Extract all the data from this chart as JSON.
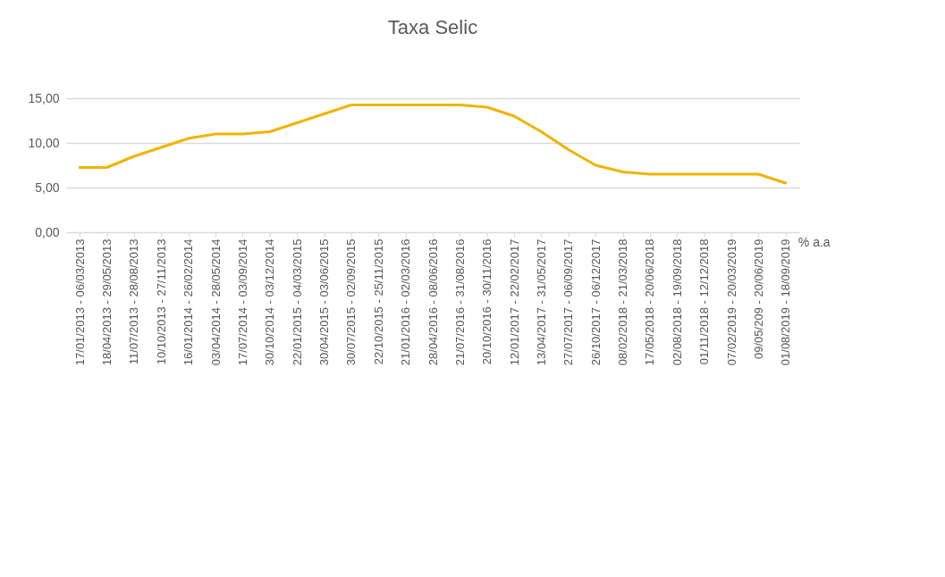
{
  "chart_data": {
    "type": "line",
    "title": "Taxa Selic",
    "categories": [
      "17/01/2013 - 06/03/2013",
      "18/04/2013 - 29/05/2013",
      "11/07/2013 - 28/08/2013",
      "10/10/2013 - 27/11/2013",
      "16/01/2014 - 26/02/2014",
      "03/04/2014 - 28/05/2014",
      "17/07/2014 - 03/09/2014",
      "30/10/2014 - 03/12/2014",
      "22/01/2015 - 04/03/2015",
      "30/04/2015 - 03/06/2015",
      "30/07/2015 - 02/09/2015",
      "22/10/2015 - 25/11/2015",
      "21/01/2016 - 02/03/2016",
      "28/04/2016 - 08/06/2016",
      "21/07/2016 - 31/08/2016",
      "20/10/2016 - 30/11/2016",
      "12/01/2017 - 22/02/2017",
      "13/04/2017 - 31/05/2017",
      "27/07/2017 - 06/09/2017",
      "26/10/2017 - 06/12/2017",
      "08/02/2018 - 21/03/2018",
      "17/05/2018 - 20/06/2018",
      "02/08/2018 - 19/09/2018",
      "01/11/2018 - 12/12/2018",
      "07/02/2019 - 20/03/2019",
      "09/05/209 - 20/06/2019",
      "01/08/2019 - 18/09/2019"
    ],
    "series": [
      {
        "name": "% a.a",
        "color": "#f0b400",
        "values": [
          7.25,
          7.25,
          8.5,
          9.5,
          10.5,
          11,
          11,
          11.25,
          12.25,
          13.25,
          14.25,
          14.25,
          14.25,
          14.25,
          14.25,
          14,
          13,
          11.25,
          9.25,
          7.5,
          6.75,
          6.5,
          6.5,
          6.5,
          6.5,
          6.5,
          5.5
        ]
      }
    ],
    "ylim": [
      0,
      15
    ],
    "yticks": [
      {
        "value": 0,
        "label": "0,00"
      },
      {
        "value": 5,
        "label": "5,00"
      },
      {
        "value": 10,
        "label": "10,00"
      },
      {
        "value": 15,
        "label": "15,00"
      }
    ],
    "grid": "y",
    "legend": "right",
    "marker": "none",
    "line_style": "solid"
  }
}
